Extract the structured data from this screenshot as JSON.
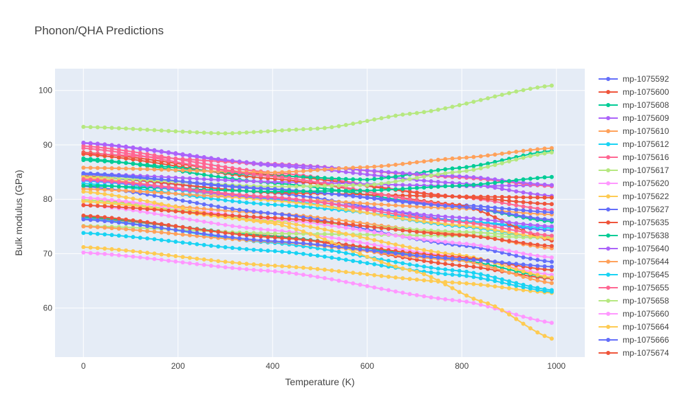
{
  "chart_data": {
    "type": "line",
    "title": "Phonon/QHA Predictions",
    "xlabel": "Temperature (K)",
    "ylabel": "Bulk modulus (GPa)",
    "xlim": [
      -60,
      1060
    ],
    "ylim": [
      51,
      104
    ],
    "xticks": [
      0,
      200,
      400,
      600,
      800,
      1000
    ],
    "yticks": [
      60,
      70,
      80,
      90,
      100
    ],
    "grid": true,
    "legend_position": "right",
    "x_range": [
      0,
      990
    ],
    "x_step": 15,
    "series": [
      {
        "name": "mp-1075592",
        "color": "#636efa",
        "anchors": [
          [
            0,
            84.6
          ],
          [
            400,
            81.8
          ],
          [
            800,
            78.9
          ],
          [
            990,
            77.6
          ]
        ]
      },
      {
        "name": "mp-1075600",
        "color": "#ef553b",
        "anchors": [
          [
            0,
            88.3
          ],
          [
            400,
            83.8
          ],
          [
            800,
            78.9
          ],
          [
            990,
            72.4
          ]
        ]
      },
      {
        "name": "mp-1075608",
        "color": "#00cc96",
        "anchors": [
          [
            0,
            87.2
          ],
          [
            400,
            84.3
          ],
          [
            600,
            83.6
          ],
          [
            800,
            85.8
          ],
          [
            990,
            88.9
          ]
        ]
      },
      {
        "name": "mp-1075609",
        "color": "#ab63fa",
        "anchors": [
          [
            0,
            90.4
          ],
          [
            400,
            86.4
          ],
          [
            800,
            84.2
          ],
          [
            990,
            82.6
          ]
        ]
      },
      {
        "name": "mp-1075610",
        "color": "#ffa15a",
        "anchors": [
          [
            0,
            85.8
          ],
          [
            400,
            84.9
          ],
          [
            600,
            85.9
          ],
          [
            800,
            87.6
          ],
          [
            990,
            89.4
          ]
        ]
      },
      {
        "name": "mp-1075612",
        "color": "#19d3f3",
        "anchors": [
          [
            0,
            83.4
          ],
          [
            400,
            80.0
          ],
          [
            800,
            75.0
          ],
          [
            990,
            72.8
          ]
        ]
      },
      {
        "name": "mp-1075616",
        "color": "#ff6692",
        "anchors": [
          [
            0,
            89.4
          ],
          [
            400,
            84.2
          ],
          [
            800,
            78.6
          ],
          [
            990,
            76.2
          ]
        ]
      },
      {
        "name": "mp-1075617",
        "color": "#b6e880",
        "anchors": [
          [
            0,
            84.1
          ],
          [
            400,
            82.3
          ],
          [
            600,
            82.6
          ],
          [
            800,
            85.1
          ],
          [
            990,
            88.6
          ]
        ]
      },
      {
        "name": "mp-1075620",
        "color": "#ff97ff",
        "anchors": [
          [
            0,
            80.3
          ],
          [
            400,
            76.4
          ],
          [
            800,
            71.9
          ],
          [
            990,
            69.3
          ]
        ]
      },
      {
        "name": "mp-1075622",
        "color": "#fecb52",
        "anchors": [
          [
            0,
            84.0
          ],
          [
            400,
            79.8
          ],
          [
            800,
            75.2
          ],
          [
            990,
            72.8
          ]
        ]
      },
      {
        "name": "mp-1075627",
        "color": "#636efa",
        "anchors": [
          [
            0,
            84.8
          ],
          [
            400,
            81.9
          ],
          [
            800,
            78.6
          ],
          [
            990,
            76.2
          ]
        ]
      },
      {
        "name": "mp-1075635",
        "color": "#ef553b",
        "anchors": [
          [
            0,
            77.0
          ],
          [
            400,
            73.0
          ],
          [
            800,
            69.3
          ],
          [
            990,
            67.0
          ]
        ]
      },
      {
        "name": "mp-1075638",
        "color": "#00cc96",
        "anchors": [
          [
            0,
            82.5
          ],
          [
            400,
            81.4
          ],
          [
            600,
            81.6
          ],
          [
            800,
            82.5
          ],
          [
            990,
            84.1
          ]
        ]
      },
      {
        "name": "mp-1075640",
        "color": "#ab63fa",
        "anchors": [
          [
            0,
            83.5
          ],
          [
            400,
            80.2
          ],
          [
            800,
            76.6
          ],
          [
            990,
            75.0
          ]
        ]
      },
      {
        "name": "mp-1075644",
        "color": "#ffa15a",
        "anchors": [
          [
            0,
            75.0
          ],
          [
            400,
            72.2
          ],
          [
            800,
            68.7
          ],
          [
            990,
            64.6
          ]
        ]
      },
      {
        "name": "mp-1075645",
        "color": "#19d3f3",
        "anchors": [
          [
            0,
            73.8
          ],
          [
            400,
            70.5
          ],
          [
            800,
            66.0
          ],
          [
            990,
            63.0
          ]
        ]
      },
      {
        "name": "mp-1075655",
        "color": "#ff6692",
        "anchors": [
          [
            0,
            83.7
          ],
          [
            400,
            80.4
          ],
          [
            800,
            75.8
          ],
          [
            990,
            73.3
          ]
        ]
      },
      {
        "name": "mp-1075658",
        "color": "#b6e880",
        "anchors": [
          [
            0,
            93.3
          ],
          [
            300,
            92.1
          ],
          [
            500,
            93.0
          ],
          [
            700,
            95.8
          ],
          [
            990,
            100.9
          ]
        ]
      },
      {
        "name": "mp-1075660",
        "color": "#ff97ff",
        "anchors": [
          [
            0,
            70.2
          ],
          [
            400,
            66.8
          ],
          [
            800,
            61.3
          ],
          [
            990,
            57.3
          ]
        ]
      },
      {
        "name": "mp-1075664",
        "color": "#fecb52",
        "anchors": [
          [
            0,
            81.4
          ],
          [
            400,
            75.6
          ],
          [
            700,
            66.8
          ],
          [
            850,
            61.0
          ],
          [
            990,
            54.4
          ]
        ]
      },
      {
        "name": "mp-1075666",
        "color": "#636efa",
        "anchors": [
          [
            0,
            76.3
          ],
          [
            400,
            72.3
          ],
          [
            800,
            69.0
          ],
          [
            990,
            67.6
          ]
        ]
      },
      {
        "name": "mp-1075674",
        "color": "#ef553b",
        "anchors": [
          [
            0,
            78.9
          ],
          [
            400,
            76.6
          ],
          [
            800,
            73.4
          ],
          [
            990,
            71.4
          ]
        ]
      }
    ],
    "extra_series": [
      {
        "color": "#636efa",
        "anchors": [
          [
            0,
            84.2
          ],
          [
            400,
            81.2
          ],
          [
            800,
            76.0
          ],
          [
            990,
            74.3
          ]
        ]
      },
      {
        "color": "#ef553b",
        "anchors": [
          [
            0,
            76.6
          ],
          [
            400,
            73.3
          ],
          [
            800,
            67.8
          ],
          [
            990,
            65.4
          ]
        ]
      },
      {
        "color": "#00cc96",
        "anchors": [
          [
            0,
            87.5
          ],
          [
            400,
            83.0
          ],
          [
            800,
            78.6
          ],
          [
            990,
            75.9
          ]
        ]
      },
      {
        "color": "#ab63fa",
        "anchors": [
          [
            0,
            90.3
          ],
          [
            400,
            86.2
          ],
          [
            800,
            82.9
          ],
          [
            990,
            80.6
          ]
        ]
      },
      {
        "color": "#ffa15a",
        "anchors": [
          [
            0,
            79.9
          ],
          [
            400,
            77.4
          ],
          [
            800,
            73.6
          ],
          [
            990,
            71.0
          ]
        ]
      },
      {
        "color": "#19d3f3",
        "anchors": [
          [
            0,
            82.9
          ],
          [
            400,
            79.0
          ],
          [
            800,
            76.0
          ],
          [
            990,
            74.7
          ]
        ]
      },
      {
        "color": "#ff6692",
        "anchors": [
          [
            0,
            89.8
          ],
          [
            400,
            84.9
          ],
          [
            800,
            80.4
          ],
          [
            990,
            78.0
          ]
        ]
      },
      {
        "color": "#b6e880",
        "anchors": [
          [
            0,
            79.9
          ],
          [
            400,
            76.1
          ],
          [
            800,
            74.0
          ],
          [
            990,
            73.1
          ]
        ]
      },
      {
        "color": "#ff97ff",
        "anchors": [
          [
            0,
            79.0
          ],
          [
            400,
            74.3
          ],
          [
            800,
            69.4
          ],
          [
            990,
            66.1
          ]
        ]
      },
      {
        "color": "#fecb52",
        "anchors": [
          [
            0,
            71.2
          ],
          [
            400,
            67.8
          ],
          [
            800,
            64.6
          ],
          [
            990,
            62.8
          ]
        ]
      },
      {
        "color": "#636efa",
        "anchors": [
          [
            0,
            82.4
          ],
          [
            400,
            77.4
          ],
          [
            800,
            71.5
          ],
          [
            990,
            68.5
          ]
        ]
      },
      {
        "color": "#ef553b",
        "anchors": [
          [
            0,
            88.6
          ],
          [
            400,
            84.5
          ],
          [
            800,
            80.4
          ],
          [
            990,
            79.1
          ]
        ]
      },
      {
        "color": "#00cc96",
        "anchors": [
          [
            0,
            76.8
          ],
          [
            400,
            73.2
          ],
          [
            800,
            68.8
          ],
          [
            990,
            65.6
          ]
        ]
      },
      {
        "color": "#ab63fa",
        "anchors": [
          [
            0,
            84.7
          ],
          [
            400,
            83.2
          ],
          [
            800,
            82.4
          ],
          [
            990,
            82.6
          ]
        ]
      },
      {
        "color": "#ffa15a",
        "anchors": [
          [
            0,
            81.9
          ],
          [
            400,
            80.1
          ],
          [
            800,
            78.3
          ],
          [
            990,
            77.2
          ]
        ]
      },
      {
        "color": "#19d3f3",
        "anchors": [
          [
            0,
            76.5
          ],
          [
            400,
            72.0
          ],
          [
            800,
            66.8
          ],
          [
            990,
            63.3
          ]
        ]
      },
      {
        "color": "#ff6692",
        "anchors": [
          [
            0,
            88.4
          ],
          [
            400,
            86.5
          ],
          [
            800,
            84.0
          ],
          [
            990,
            82.4
          ]
        ]
      },
      {
        "color": "#b6e880",
        "anchors": [
          [
            0,
            75.1
          ],
          [
            400,
            73.7
          ],
          [
            800,
            73.3
          ],
          [
            990,
            72.9
          ]
        ]
      },
      {
        "color": "#fecb52",
        "anchors": [
          [
            0,
            79.6
          ],
          [
            400,
            75.9
          ],
          [
            800,
            69.7
          ],
          [
            990,
            65.6
          ]
        ]
      },
      {
        "color": "#ef553b",
        "anchors": [
          [
            0,
            84.3
          ],
          [
            400,
            81.2
          ],
          [
            800,
            80.5
          ],
          [
            990,
            80.3
          ]
        ]
      }
    ]
  }
}
